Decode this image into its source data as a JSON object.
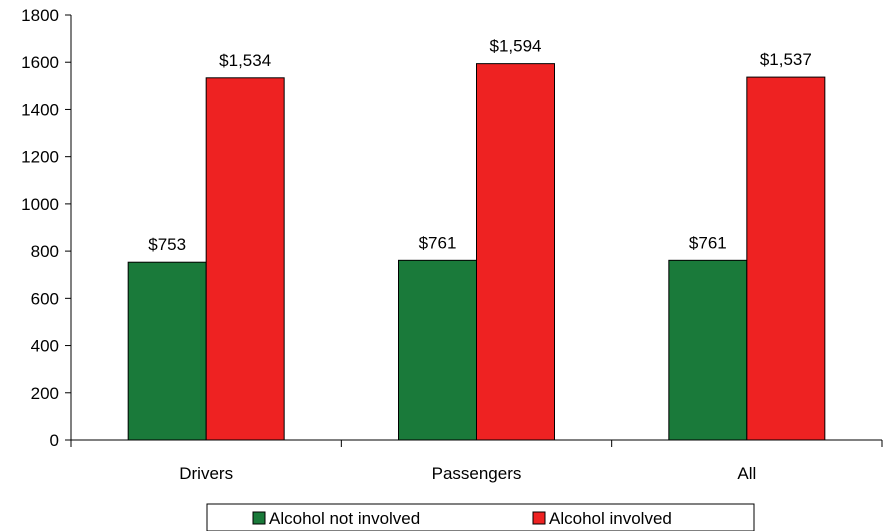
{
  "chart_data": {
    "type": "bar",
    "title": "",
    "xlabel": "",
    "ylabel": "",
    "categories": [
      "Drivers",
      "Passengers",
      "All"
    ],
    "ylim": [
      0,
      1800
    ],
    "yticks": [
      0,
      200,
      400,
      600,
      800,
      1000,
      1200,
      1400,
      1600,
      1800
    ],
    "grid": false,
    "legend_position": "bottom",
    "series": [
      {
        "name": "Alcohol not involved",
        "color": "#1a7a3a",
        "values": [
          753,
          761,
          761
        ],
        "labels": [
          "$753",
          "$761",
          "$761"
        ]
      },
      {
        "name": "Alcohol involved",
        "color": "#ee2222",
        "values": [
          1534,
          1594,
          1537
        ],
        "labels": [
          "$1,534",
          "$1,594",
          "$1,537"
        ]
      }
    ]
  }
}
